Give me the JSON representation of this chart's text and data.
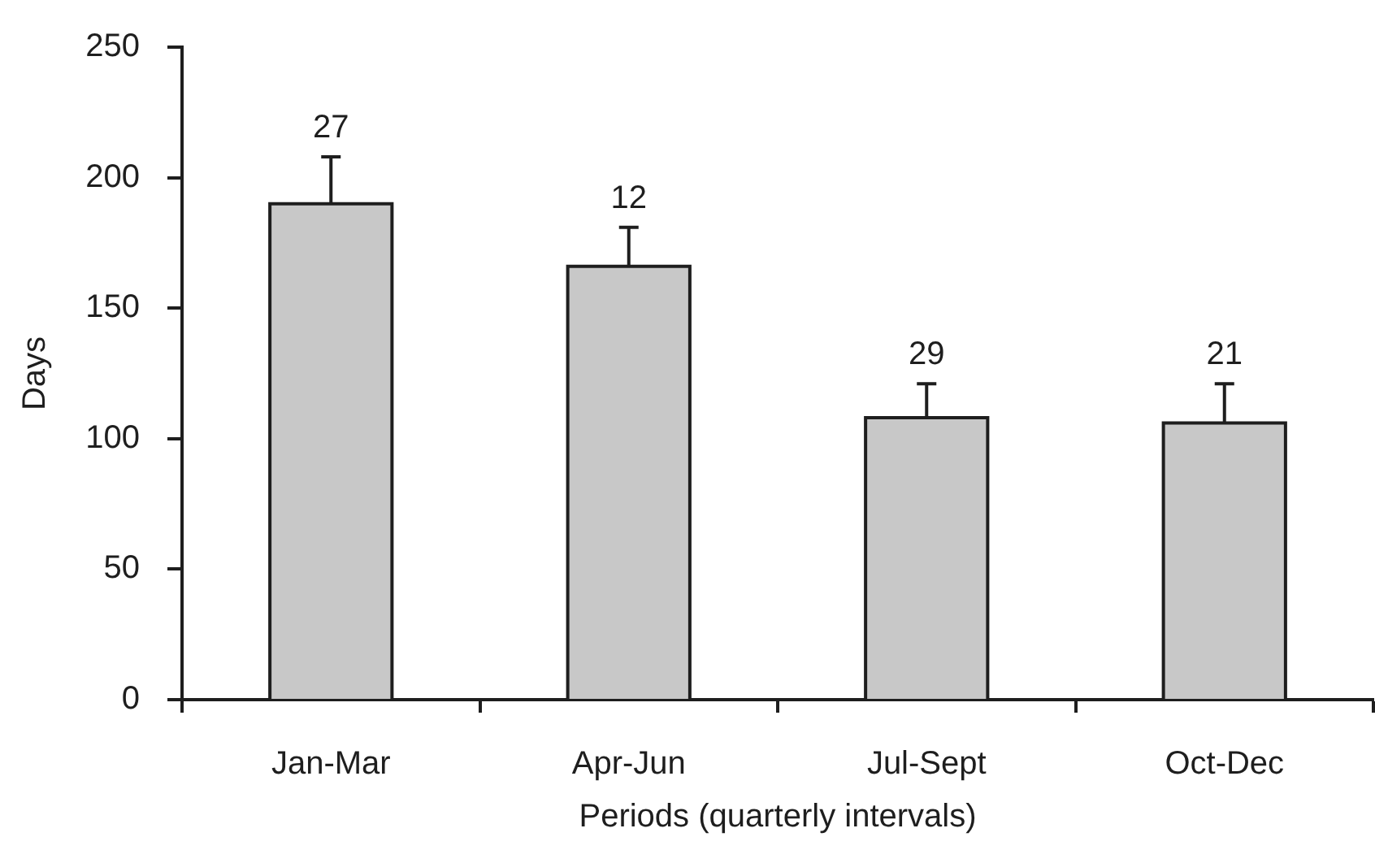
{
  "chart_data": {
    "type": "bar",
    "xlabel": "Periods (quarterly intervals)",
    "ylabel": "Days",
    "categories": [
      "Jan-Mar",
      "Apr-Jun",
      "Jul-Sept",
      "Oct-Dec"
    ],
    "values": [
      190,
      166,
      108,
      106
    ],
    "errors": [
      [
        190,
        208
      ],
      [
        166,
        181
      ],
      [
        108,
        121
      ],
      [
        106,
        121
      ]
    ],
    "color": "#c8c8c8",
    "ylim": [
      0,
      250
    ],
    "yticks": [
      0,
      50,
      100,
      150,
      200,
      250
    ],
    "grid": false,
    "legend": false,
    "annotations": [
      {
        "text": "27",
        "x": "Jan-Mar",
        "y": 208
      },
      {
        "text": "12",
        "x": "Apr-Jun",
        "y": 181
      },
      {
        "text": "29",
        "x": "Jul-Sept",
        "y": 121
      },
      {
        "text": "21",
        "x": "Oct-Dec",
        "y": 121
      }
    ]
  }
}
